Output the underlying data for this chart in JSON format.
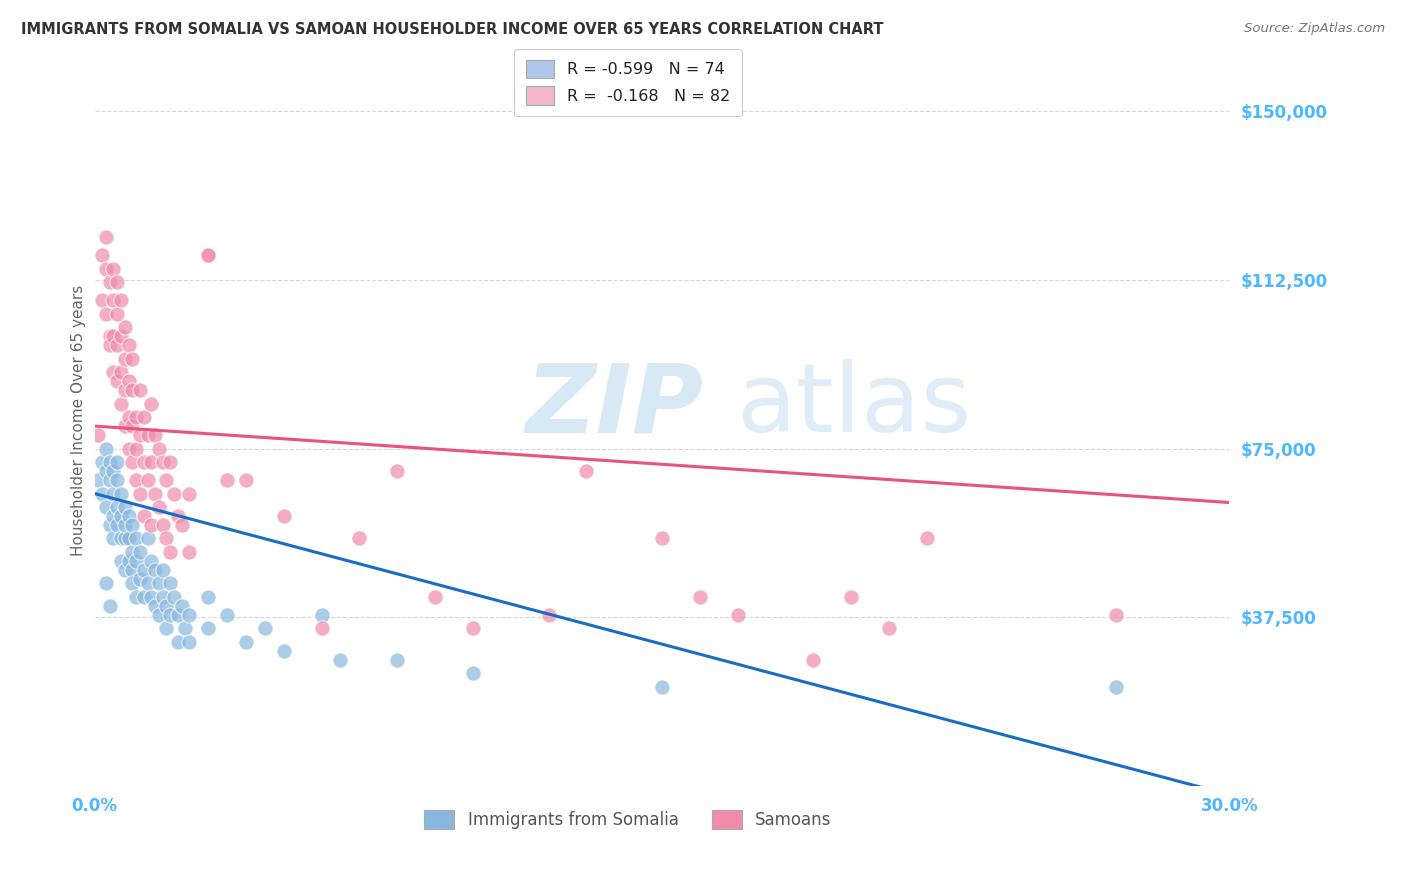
{
  "title": "IMMIGRANTS FROM SOMALIA VS SAMOAN HOUSEHOLDER INCOME OVER 65 YEARS CORRELATION CHART",
  "source": "Source: ZipAtlas.com",
  "ylabel": "Householder Income Over 65 years",
  "ytick_labels": [
    "$37,500",
    "$75,000",
    "$112,500",
    "$150,000"
  ],
  "ytick_values": [
    37500,
    75000,
    112500,
    150000
  ],
  "ymin": 0,
  "ymax": 162500,
  "xmin": 0.0,
  "xmax": 0.3,
  "legend_top": [
    {
      "label": "R = -0.599   N = 74",
      "facecolor": "#aec6e8"
    },
    {
      "label": "R =  -0.168   N = 82",
      "facecolor": "#f4b8c8"
    }
  ],
  "legend_bottom": [
    "Immigrants from Somalia",
    "Samoans"
  ],
  "somalia_color": "#89b8de",
  "samoan_color": "#f08caa",
  "somalia_line_color": "#1a6cc4",
  "samoan_line_color": "#e8547a",
  "watermark_text": "ZIP",
  "watermark_text2": "atlas",
  "background_color": "#ffffff",
  "grid_color": "#cccccc",
  "title_color": "#333333",
  "axis_tick_color": "#4db8ff",
  "somalia_points": [
    [
      0.001,
      68000
    ],
    [
      0.002,
      72000
    ],
    [
      0.002,
      65000
    ],
    [
      0.003,
      70000
    ],
    [
      0.003,
      62000
    ],
    [
      0.003,
      75000
    ],
    [
      0.004,
      68000
    ],
    [
      0.004,
      58000
    ],
    [
      0.004,
      72000
    ],
    [
      0.005,
      65000
    ],
    [
      0.005,
      60000
    ],
    [
      0.005,
      70000
    ],
    [
      0.005,
      55000
    ],
    [
      0.006,
      68000
    ],
    [
      0.006,
      62000
    ],
    [
      0.006,
      58000
    ],
    [
      0.006,
      72000
    ],
    [
      0.007,
      60000
    ],
    [
      0.007,
      55000
    ],
    [
      0.007,
      65000
    ],
    [
      0.007,
      50000
    ],
    [
      0.008,
      62000
    ],
    [
      0.008,
      55000
    ],
    [
      0.008,
      48000
    ],
    [
      0.008,
      58000
    ],
    [
      0.009,
      55000
    ],
    [
      0.009,
      50000
    ],
    [
      0.009,
      60000
    ],
    [
      0.01,
      52000
    ],
    [
      0.01,
      48000
    ],
    [
      0.01,
      58000
    ],
    [
      0.01,
      45000
    ],
    [
      0.011,
      55000
    ],
    [
      0.011,
      50000
    ],
    [
      0.011,
      42000
    ],
    [
      0.012,
      52000
    ],
    [
      0.012,
      46000
    ],
    [
      0.013,
      48000
    ],
    [
      0.013,
      42000
    ],
    [
      0.014,
      55000
    ],
    [
      0.014,
      45000
    ],
    [
      0.015,
      50000
    ],
    [
      0.015,
      42000
    ],
    [
      0.016,
      48000
    ],
    [
      0.016,
      40000
    ],
    [
      0.017,
      45000
    ],
    [
      0.017,
      38000
    ],
    [
      0.018,
      42000
    ],
    [
      0.018,
      48000
    ],
    [
      0.019,
      40000
    ],
    [
      0.019,
      35000
    ],
    [
      0.02,
      45000
    ],
    [
      0.02,
      38000
    ],
    [
      0.021,
      42000
    ],
    [
      0.022,
      38000
    ],
    [
      0.022,
      32000
    ],
    [
      0.023,
      40000
    ],
    [
      0.024,
      35000
    ],
    [
      0.025,
      38000
    ],
    [
      0.025,
      32000
    ],
    [
      0.03,
      42000
    ],
    [
      0.03,
      35000
    ],
    [
      0.035,
      38000
    ],
    [
      0.04,
      32000
    ],
    [
      0.045,
      35000
    ],
    [
      0.05,
      30000
    ],
    [
      0.06,
      38000
    ],
    [
      0.065,
      28000
    ],
    [
      0.08,
      28000
    ],
    [
      0.1,
      25000
    ],
    [
      0.15,
      22000
    ],
    [
      0.27,
      22000
    ],
    [
      0.003,
      45000
    ],
    [
      0.004,
      40000
    ]
  ],
  "samoan_points": [
    [
      0.001,
      78000
    ],
    [
      0.002,
      108000
    ],
    [
      0.002,
      118000
    ],
    [
      0.003,
      105000
    ],
    [
      0.003,
      115000
    ],
    [
      0.003,
      122000
    ],
    [
      0.004,
      100000
    ],
    [
      0.004,
      112000
    ],
    [
      0.004,
      98000
    ],
    [
      0.005,
      108000
    ],
    [
      0.005,
      100000
    ],
    [
      0.005,
      92000
    ],
    [
      0.005,
      115000
    ],
    [
      0.006,
      105000
    ],
    [
      0.006,
      98000
    ],
    [
      0.006,
      90000
    ],
    [
      0.006,
      112000
    ],
    [
      0.007,
      100000
    ],
    [
      0.007,
      92000
    ],
    [
      0.007,
      85000
    ],
    [
      0.007,
      108000
    ],
    [
      0.008,
      95000
    ],
    [
      0.008,
      88000
    ],
    [
      0.008,
      80000
    ],
    [
      0.008,
      102000
    ],
    [
      0.009,
      90000
    ],
    [
      0.009,
      82000
    ],
    [
      0.009,
      75000
    ],
    [
      0.009,
      98000
    ],
    [
      0.01,
      88000
    ],
    [
      0.01,
      80000
    ],
    [
      0.01,
      72000
    ],
    [
      0.01,
      95000
    ],
    [
      0.011,
      82000
    ],
    [
      0.011,
      75000
    ],
    [
      0.011,
      68000
    ],
    [
      0.012,
      88000
    ],
    [
      0.012,
      78000
    ],
    [
      0.012,
      65000
    ],
    [
      0.013,
      82000
    ],
    [
      0.013,
      72000
    ],
    [
      0.013,
      60000
    ],
    [
      0.014,
      78000
    ],
    [
      0.014,
      68000
    ],
    [
      0.015,
      85000
    ],
    [
      0.015,
      72000
    ],
    [
      0.015,
      58000
    ],
    [
      0.016,
      78000
    ],
    [
      0.016,
      65000
    ],
    [
      0.017,
      75000
    ],
    [
      0.017,
      62000
    ],
    [
      0.018,
      72000
    ],
    [
      0.018,
      58000
    ],
    [
      0.019,
      68000
    ],
    [
      0.019,
      55000
    ],
    [
      0.02,
      72000
    ],
    [
      0.02,
      52000
    ],
    [
      0.021,
      65000
    ],
    [
      0.022,
      60000
    ],
    [
      0.023,
      58000
    ],
    [
      0.025,
      65000
    ],
    [
      0.025,
      52000
    ],
    [
      0.03,
      118000
    ],
    [
      0.03,
      118000
    ],
    [
      0.035,
      68000
    ],
    [
      0.04,
      68000
    ],
    [
      0.05,
      60000
    ],
    [
      0.06,
      35000
    ],
    [
      0.07,
      55000
    ],
    [
      0.08,
      70000
    ],
    [
      0.09,
      42000
    ],
    [
      0.1,
      35000
    ],
    [
      0.12,
      38000
    ],
    [
      0.13,
      70000
    ],
    [
      0.15,
      55000
    ],
    [
      0.16,
      42000
    ],
    [
      0.17,
      38000
    ],
    [
      0.19,
      28000
    ],
    [
      0.2,
      42000
    ],
    [
      0.21,
      35000
    ],
    [
      0.22,
      55000
    ],
    [
      0.27,
      38000
    ]
  ]
}
